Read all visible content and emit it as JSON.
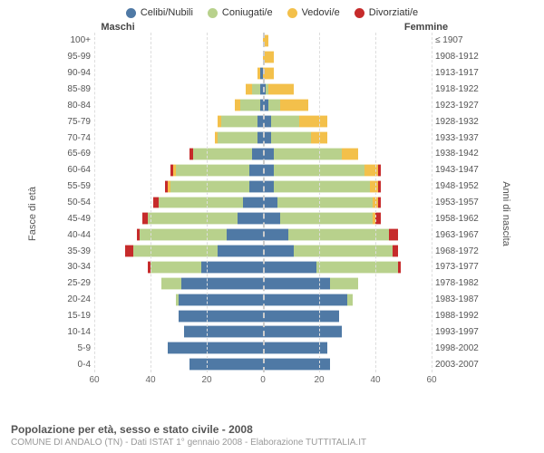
{
  "legend": [
    {
      "label": "Celibi/Nubili",
      "color": "#4f79a5"
    },
    {
      "label": "Coniugati/e",
      "color": "#b8d18c"
    },
    {
      "label": "Vedovi/e",
      "color": "#f3c04b"
    },
    {
      "label": "Divorziati/e",
      "color": "#c62b2b"
    }
  ],
  "headers": {
    "male": "Maschi",
    "female": "Femmine"
  },
  "y_axis_left": "Fasce di età",
  "y_axis_right": "Anni di nascita",
  "footer_title": "Popolazione per età, sesso e stato civile - 2008",
  "footer_sub": "COMUNE DI ANDALO (TN) - Dati ISTAT 1° gennaio 2008 - Elaborazione TUTTITALIA.IT",
  "x_max": 60,
  "x_ticks": [
    60,
    40,
    20,
    0,
    20,
    40,
    60
  ],
  "grid_color": "#ddd",
  "background_color": "#ffffff",
  "rows": [
    {
      "age": "100+",
      "birth": "≤ 1907",
      "m": {
        "c": 0,
        "co": 0,
        "v": 0,
        "d": 0
      },
      "f": {
        "c": 0,
        "co": 0,
        "v": 2,
        "d": 0
      }
    },
    {
      "age": "95-99",
      "birth": "1908-1912",
      "m": {
        "c": 0,
        "co": 0,
        "v": 0,
        "d": 0
      },
      "f": {
        "c": 0,
        "co": 0,
        "v": 4,
        "d": 0
      }
    },
    {
      "age": "90-94",
      "birth": "1913-1917",
      "m": {
        "c": 1,
        "co": 0,
        "v": 1,
        "d": 0
      },
      "f": {
        "c": 0,
        "co": 0,
        "v": 4,
        "d": 0
      }
    },
    {
      "age": "85-89",
      "birth": "1918-1922",
      "m": {
        "c": 1,
        "co": 3,
        "v": 2,
        "d": 0
      },
      "f": {
        "c": 1,
        "co": 1,
        "v": 9,
        "d": 0
      }
    },
    {
      "age": "80-84",
      "birth": "1923-1927",
      "m": {
        "c": 1,
        "co": 7,
        "v": 2,
        "d": 0
      },
      "f": {
        "c": 2,
        "co": 4,
        "v": 10,
        "d": 0
      }
    },
    {
      "age": "75-79",
      "birth": "1928-1932",
      "m": {
        "c": 2,
        "co": 13,
        "v": 1,
        "d": 0
      },
      "f": {
        "c": 3,
        "co": 10,
        "v": 10,
        "d": 0
      }
    },
    {
      "age": "70-74",
      "birth": "1933-1937",
      "m": {
        "c": 2,
        "co": 14,
        "v": 1,
        "d": 0
      },
      "f": {
        "c": 3,
        "co": 14,
        "v": 6,
        "d": 0
      }
    },
    {
      "age": "65-69",
      "birth": "1938-1942",
      "m": {
        "c": 4,
        "co": 21,
        "v": 0,
        "d": 1
      },
      "f": {
        "c": 4,
        "co": 24,
        "v": 6,
        "d": 0
      }
    },
    {
      "age": "60-64",
      "birth": "1943-1947",
      "m": {
        "c": 5,
        "co": 26,
        "v": 1,
        "d": 1
      },
      "f": {
        "c": 4,
        "co": 32,
        "v": 5,
        "d": 1
      }
    },
    {
      "age": "55-59",
      "birth": "1948-1952",
      "m": {
        "c": 5,
        "co": 28,
        "v": 1,
        "d": 1
      },
      "f": {
        "c": 4,
        "co": 34,
        "v": 3,
        "d": 1
      }
    },
    {
      "age": "50-54",
      "birth": "1953-1957",
      "m": {
        "c": 7,
        "co": 30,
        "v": 0,
        "d": 2
      },
      "f": {
        "c": 5,
        "co": 34,
        "v": 2,
        "d": 1
      }
    },
    {
      "age": "45-49",
      "birth": "1958-1962",
      "m": {
        "c": 9,
        "co": 32,
        "v": 0,
        "d": 2
      },
      "f": {
        "c": 6,
        "co": 33,
        "v": 1,
        "d": 2
      }
    },
    {
      "age": "40-44",
      "birth": "1963-1967",
      "m": {
        "c": 13,
        "co": 31,
        "v": 0,
        "d": 1
      },
      "f": {
        "c": 9,
        "co": 36,
        "v": 0,
        "d": 3
      }
    },
    {
      "age": "35-39",
      "birth": "1968-1972",
      "m": {
        "c": 16,
        "co": 30,
        "v": 0,
        "d": 3
      },
      "f": {
        "c": 11,
        "co": 35,
        "v": 0,
        "d": 2
      }
    },
    {
      "age": "30-34",
      "birth": "1973-1977",
      "m": {
        "c": 22,
        "co": 18,
        "v": 0,
        "d": 1
      },
      "f": {
        "c": 19,
        "co": 29,
        "v": 0,
        "d": 1
      }
    },
    {
      "age": "25-29",
      "birth": "1978-1982",
      "m": {
        "c": 29,
        "co": 7,
        "v": 0,
        "d": 0
      },
      "f": {
        "c": 24,
        "co": 10,
        "v": 0,
        "d": 0
      }
    },
    {
      "age": "20-24",
      "birth": "1983-1987",
      "m": {
        "c": 30,
        "co": 1,
        "v": 0,
        "d": 0
      },
      "f": {
        "c": 30,
        "co": 2,
        "v": 0,
        "d": 0
      }
    },
    {
      "age": "15-19",
      "birth": "1988-1992",
      "m": {
        "c": 30,
        "co": 0,
        "v": 0,
        "d": 0
      },
      "f": {
        "c": 27,
        "co": 0,
        "v": 0,
        "d": 0
      }
    },
    {
      "age": "10-14",
      "birth": "1993-1997",
      "m": {
        "c": 28,
        "co": 0,
        "v": 0,
        "d": 0
      },
      "f": {
        "c": 28,
        "co": 0,
        "v": 0,
        "d": 0
      }
    },
    {
      "age": "5-9",
      "birth": "1998-2002",
      "m": {
        "c": 34,
        "co": 0,
        "v": 0,
        "d": 0
      },
      "f": {
        "c": 23,
        "co": 0,
        "v": 0,
        "d": 0
      }
    },
    {
      "age": "0-4",
      "birth": "2003-2007",
      "m": {
        "c": 26,
        "co": 0,
        "v": 0,
        "d": 0
      },
      "f": {
        "c": 24,
        "co": 0,
        "v": 0,
        "d": 0
      }
    }
  ]
}
